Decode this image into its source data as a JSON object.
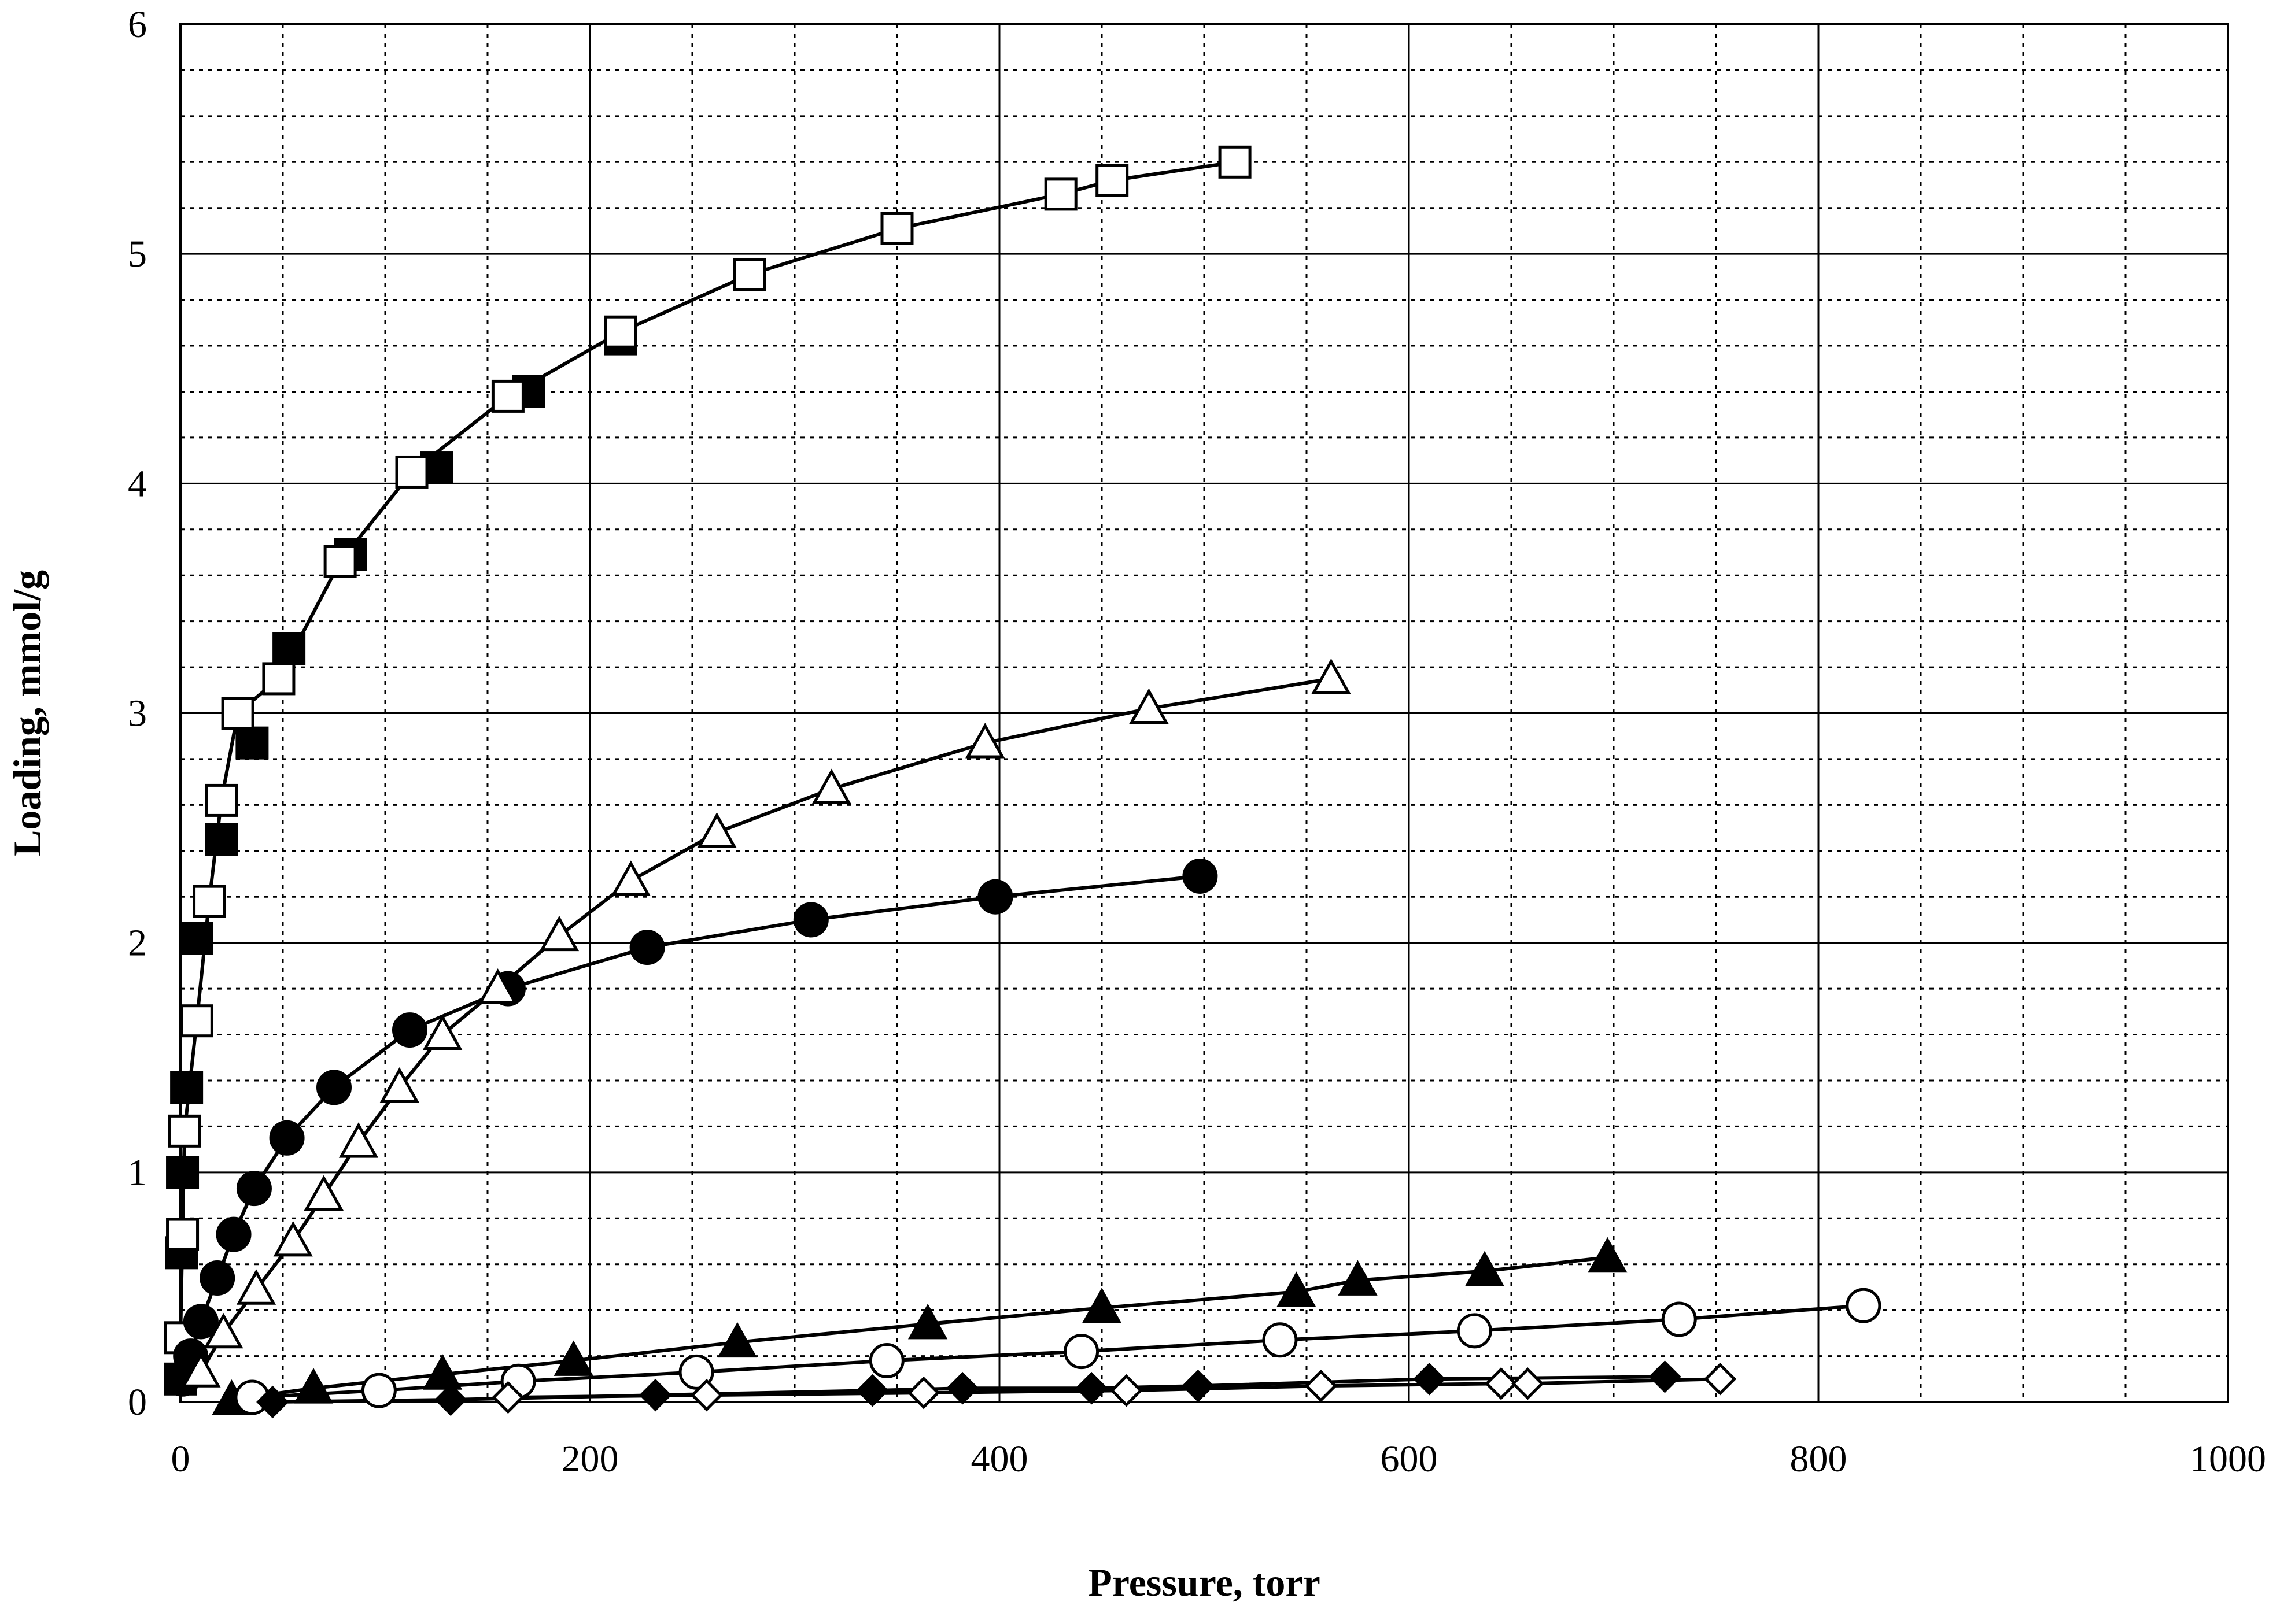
{
  "chart_data": {
    "type": "scatter",
    "xlabel": "Pressure, torr",
    "ylabel": "Loading, mmol/g",
    "xlim": [
      0,
      1000
    ],
    "ylim": [
      0,
      6
    ],
    "x_major_ticks": [
      0,
      200,
      400,
      600,
      800,
      1000
    ],
    "y_major_ticks": [
      0,
      1,
      2,
      3,
      4,
      5,
      6
    ],
    "x_tick_labels": [
      "0",
      "200",
      "400",
      "600",
      "800",
      "1000"
    ],
    "y_tick_labels": [
      "0",
      "1",
      "2",
      "3",
      "4",
      "5",
      "6"
    ],
    "x_minor_step": 50,
    "y_minor_step": 0.2,
    "grid": true,
    "legend": "none",
    "series": [
      {
        "marker": "square",
        "filled": true,
        "line": false,
        "x": [
          0,
          0.5,
          1,
          3,
          8,
          20,
          35,
          53,
          83,
          125,
          170,
          215
        ],
        "y": [
          0.1,
          0.65,
          1.0,
          1.37,
          2.02,
          2.45,
          2.87,
          3.28,
          3.69,
          4.07,
          4.4,
          4.63
        ]
      },
      {
        "marker": "square",
        "filled": false,
        "line": true,
        "x": [
          0,
          1,
          2,
          8,
          14,
          20,
          28,
          48,
          78,
          113,
          160,
          215,
          278,
          350,
          430,
          455,
          515
        ],
        "y": [
          0.28,
          0.73,
          1.18,
          1.66,
          2.18,
          2.62,
          3.0,
          3.15,
          3.66,
          4.05,
          4.38,
          4.66,
          4.91,
          5.11,
          5.26,
          5.32,
          5.4
        ]
      },
      {
        "marker": "circle",
        "filled": true,
        "line": true,
        "x": [
          1,
          5,
          10,
          18,
          26,
          36,
          52,
          75,
          112,
          160,
          228,
          308,
          398,
          498
        ],
        "y": [
          0.1,
          0.2,
          0.35,
          0.54,
          0.73,
          0.93,
          1.15,
          1.37,
          1.62,
          1.8,
          1.98,
          2.1,
          2.2,
          2.29
        ]
      },
      {
        "marker": "triangle",
        "filled": false,
        "line": true,
        "x": [
          10,
          21,
          37,
          55,
          70,
          87,
          107,
          128,
          155,
          185,
          220,
          262,
          318,
          393,
          473,
          562
        ],
        "y": [
          0.13,
          0.3,
          0.49,
          0.7,
          0.9,
          1.13,
          1.37,
          1.6,
          1.8,
          2.03,
          2.27,
          2.48,
          2.67,
          2.87,
          3.02,
          3.15
        ]
      },
      {
        "marker": "triangle",
        "filled": true,
        "line": true,
        "x": [
          25,
          65,
          128,
          192,
          272,
          365,
          450,
          545,
          575,
          637,
          697
        ],
        "y": [
          0.01,
          0.06,
          0.12,
          0.18,
          0.26,
          0.34,
          0.41,
          0.48,
          0.53,
          0.57,
          0.63
        ]
      },
      {
        "marker": "circle",
        "filled": false,
        "line": true,
        "x": [
          35,
          97,
          165,
          252,
          345,
          440,
          537,
          632,
          732,
          822
        ],
        "y": [
          0.02,
          0.05,
          0.09,
          0.13,
          0.18,
          0.22,
          0.27,
          0.31,
          0.36,
          0.42
        ]
      },
      {
        "marker": "diamond",
        "filled": true,
        "line": true,
        "x": [
          45,
          132,
          232,
          338,
          382,
          445,
          497,
          610,
          725
        ],
        "y": [
          0.0,
          0.01,
          0.03,
          0.05,
          0.06,
          0.06,
          0.07,
          0.1,
          0.11
        ]
      },
      {
        "marker": "diamond",
        "filled": false,
        "line": true,
        "x": [
          160,
          257,
          363,
          462,
          557,
          645,
          658,
          752
        ],
        "y": [
          0.02,
          0.03,
          0.04,
          0.05,
          0.07,
          0.08,
          0.08,
          0.1
        ]
      }
    ]
  }
}
